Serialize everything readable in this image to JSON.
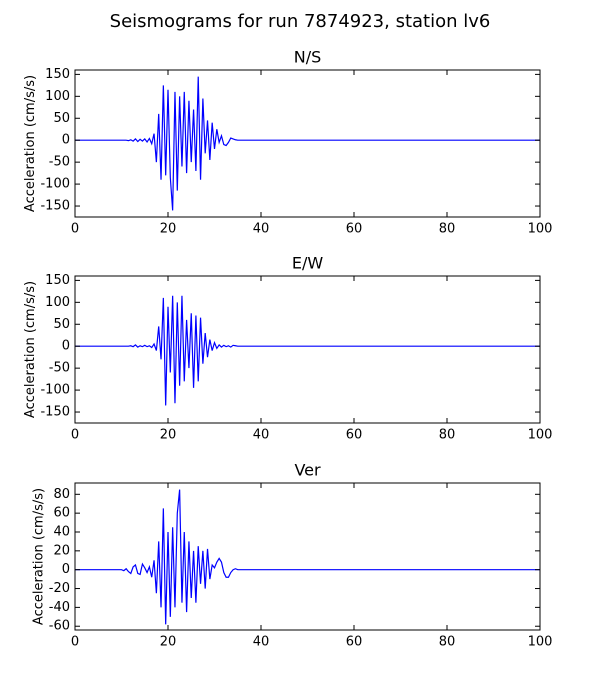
{
  "title": "Seismograms for run 7874923, station lv6",
  "chart_data": [
    {
      "type": "line",
      "title": "N/S",
      "ylabel": "Acceleration (cm/s/s)",
      "x": [
        0,
        5,
        10,
        10.5,
        11,
        11.5,
        12,
        12.5,
        13,
        13.5,
        14,
        14.5,
        15,
        15.5,
        16,
        16.5,
        17,
        17.5,
        18,
        18.5,
        19,
        19.5,
        20,
        20.5,
        21,
        21.5,
        22,
        22.5,
        23,
        23.5,
        24,
        24.5,
        25,
        25.5,
        26,
        26.5,
        27,
        27.5,
        28,
        28.5,
        29,
        29.5,
        30,
        30.5,
        31,
        31.5,
        32,
        32.5,
        33,
        33.5,
        34,
        34.5,
        35,
        35.5,
        36,
        36.5,
        37,
        37.5,
        38,
        38.5,
        39,
        39.5,
        40,
        50,
        60,
        70,
        80,
        90,
        100
      ],
      "series": [
        {
          "color": "#0000ff",
          "values": [
            0,
            0,
            0,
            0,
            0,
            -1,
            1,
            -2,
            3,
            -3,
            2,
            -2,
            3,
            -4,
            4,
            -8,
            15,
            -50,
            60,
            -90,
            125,
            -80,
            115,
            -85,
            -160,
            110,
            -115,
            100,
            -60,
            110,
            -75,
            90,
            -50,
            70,
            -70,
            145,
            -90,
            95,
            -30,
            45,
            -45,
            40,
            -20,
            25,
            -5,
            10,
            -10,
            -12,
            -5,
            5,
            3,
            1,
            0,
            0,
            0,
            0,
            0,
            0,
            0,
            0,
            0,
            0,
            0,
            0,
            0,
            0,
            0,
            0,
            0
          ]
        }
      ],
      "xlim": [
        0,
        100
      ],
      "xticks": [
        0,
        20,
        40,
        60,
        80,
        100
      ],
      "ylim": [
        -175,
        160
      ],
      "yticks": [
        -150,
        -100,
        -50,
        0,
        50,
        100,
        150
      ]
    },
    {
      "type": "line",
      "title": "E/W",
      "ylabel": "Acceleration (cm/s/s)",
      "x": [
        0,
        5,
        10,
        10.5,
        11,
        11.5,
        12,
        12.5,
        13,
        13.5,
        14,
        14.5,
        15,
        15.5,
        16,
        16.5,
        17,
        17.5,
        18,
        18.5,
        19,
        19.5,
        20,
        20.5,
        21,
        21.5,
        22,
        22.5,
        23,
        23.5,
        24,
        24.5,
        25,
        25.5,
        26,
        26.5,
        27,
        27.5,
        28,
        28.5,
        29,
        29.5,
        30,
        30.5,
        31,
        31.5,
        32,
        32.5,
        33,
        33.5,
        34,
        34.5,
        35,
        35.5,
        36,
        36.5,
        37,
        37.5,
        38,
        38.5,
        39,
        39.5,
        40,
        50,
        60,
        70,
        80,
        90,
        100
      ],
      "series": [
        {
          "color": "#0000ff",
          "values": [
            0,
            0,
            0,
            0,
            0,
            0,
            1,
            -1,
            3,
            -2,
            1,
            -1,
            2,
            -1,
            1,
            -3,
            5,
            -10,
            45,
            -30,
            110,
            -135,
            90,
            -60,
            115,
            -130,
            100,
            -90,
            115,
            -80,
            60,
            -50,
            75,
            -95,
            70,
            -80,
            65,
            -40,
            30,
            -25,
            15,
            -10,
            8,
            -5,
            3,
            -2,
            2,
            -1,
            1,
            -2,
            2,
            1,
            0,
            0,
            0,
            0,
            0,
            0,
            0,
            0,
            0,
            0,
            0,
            0,
            0,
            0,
            0,
            0,
            0
          ]
        }
      ],
      "xlim": [
        0,
        100
      ],
      "xticks": [
        0,
        20,
        40,
        60,
        80,
        100
      ],
      "ylim": [
        -175,
        160
      ],
      "yticks": [
        -150,
        -100,
        -50,
        0,
        50,
        100,
        150
      ]
    },
    {
      "type": "line",
      "title": "Ver",
      "ylabel": "Acceleration (cm/s/s)",
      "x": [
        0,
        5,
        10,
        10.5,
        11,
        11.5,
        12,
        12.5,
        13,
        13.5,
        14,
        14.5,
        15,
        15.5,
        16,
        16.5,
        17,
        17.5,
        18,
        18.5,
        19,
        19.5,
        20,
        20.5,
        21,
        21.5,
        22,
        22.5,
        23,
        23.5,
        24,
        24.5,
        25,
        25.5,
        26,
        26.5,
        27,
        27.5,
        28,
        28.5,
        29,
        29.5,
        30,
        30.5,
        31,
        31.5,
        32,
        32.5,
        33,
        33.5,
        34,
        34.5,
        35,
        35.5,
        36,
        36.5,
        37,
        37.5,
        38,
        38.5,
        39,
        39.5,
        40,
        50,
        60,
        70,
        80,
        90,
        100
      ],
      "series": [
        {
          "color": "#0000ff",
          "values": [
            0,
            0,
            0,
            -1,
            1,
            -2,
            -4,
            3,
            5,
            -4,
            -5,
            6,
            2,
            -3,
            3,
            -8,
            10,
            -25,
            30,
            -40,
            65,
            -58,
            40,
            -50,
            45,
            -40,
            60,
            85,
            -35,
            40,
            -45,
            30,
            -30,
            20,
            -35,
            25,
            -15,
            20,
            -20,
            22,
            -10,
            5,
            2,
            8,
            12,
            8,
            -3,
            -8,
            -8,
            -3,
            0,
            1,
            0,
            0,
            0,
            0,
            0,
            0,
            0,
            0,
            0,
            0,
            0,
            0,
            0,
            0,
            0,
            0,
            0
          ]
        }
      ],
      "xlim": [
        0,
        100
      ],
      "xticks": [
        0,
        20,
        40,
        60,
        80,
        100
      ],
      "ylim": [
        -64,
        92
      ],
      "yticks": [
        -60,
        -40,
        -20,
        0,
        20,
        40,
        60,
        80
      ]
    }
  ]
}
